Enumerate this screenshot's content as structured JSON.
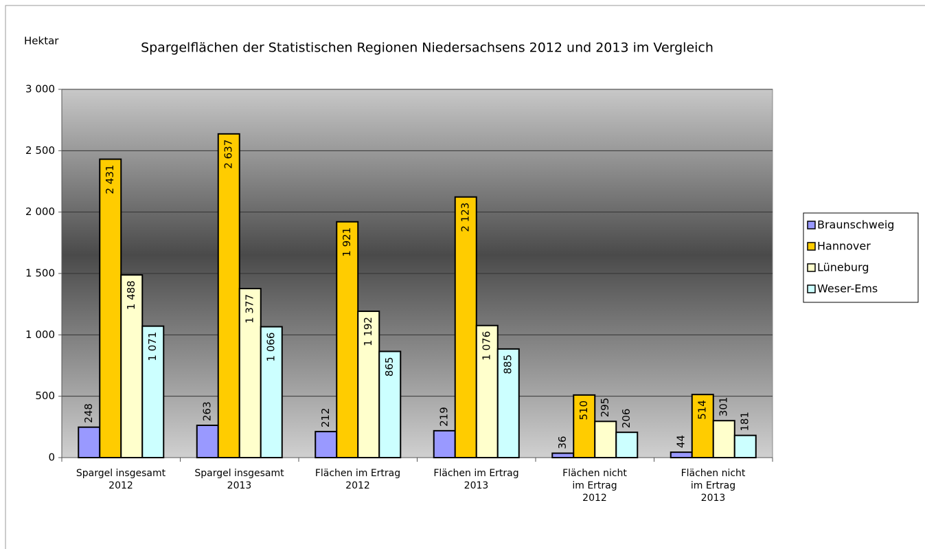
{
  "chart_data": {
    "type": "bar",
    "title": "Spargelflächen der Statistischen Regionen Niedersachsens 2012 und 2013 im Vergleich",
    "y_label": "Hektar",
    "categories": [
      "Spargel insgesamt\n2012",
      "Spargel insgesamt\n2013",
      "Flächen im Ertrag\n2012",
      "Flächen im Ertrag\n2013",
      "Flächen nicht\nim Ertrag\n2012",
      "Flächen nicht\nim Ertrag\n2013"
    ],
    "series": [
      {
        "name": "Braunschweig",
        "color": "#9999ff",
        "values": [
          248,
          263,
          212,
          219,
          36,
          44
        ],
        "value_labels": [
          "248",
          "263",
          "212",
          "219",
          "36",
          "44"
        ]
      },
      {
        "name": "Hannover",
        "color": "#ffcc00",
        "values": [
          2431,
          2637,
          1921,
          2123,
          510,
          514
        ],
        "value_labels": [
          "2 431",
          "2 637",
          "1 921",
          "2 123",
          "510",
          "514"
        ]
      },
      {
        "name": "Lüneburg",
        "color": "#ffffcc",
        "values": [
          1488,
          1377,
          1192,
          1076,
          295,
          301
        ],
        "value_labels": [
          "1 488",
          "1 377",
          "1 192",
          "1 076",
          "295",
          "301"
        ]
      },
      {
        "name": "Weser-Ems",
        "color": "#ccffff",
        "values": [
          1071,
          1066,
          865,
          885,
          206,
          181
        ],
        "value_labels": [
          "1 071",
          "1 066",
          "865",
          "885",
          "206",
          "181"
        ]
      }
    ],
    "ylim": [
      0,
      3000
    ],
    "yticks": [
      0,
      500,
      {
        "value": 1000,
        "label": "1 000"
      },
      {
        "value": 1500,
        "label": "1 500"
      },
      {
        "value": 2000,
        "label": "2 000"
      },
      {
        "value": 2500,
        "label": "2 500"
      },
      {
        "value": 3000,
        "label": "3 000"
      }
    ],
    "grid": true,
    "legend": "right"
  }
}
